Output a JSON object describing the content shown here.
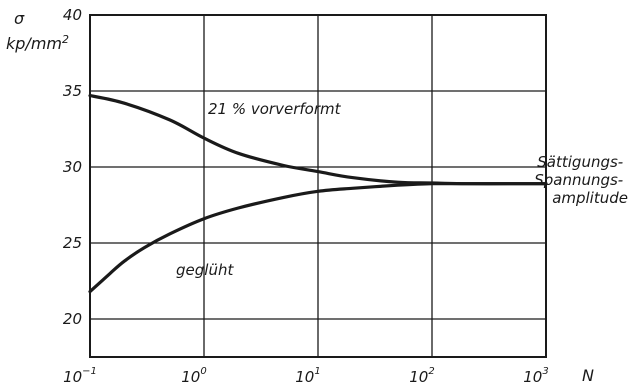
{
  "chart_data": {
    "type": "line",
    "ylabel_symbol": "σ",
    "ylabel_unit": "kp/mm",
    "ylabel_unit_exp": "2",
    "xlabel": "N",
    "x_scale": "log",
    "xlim": [
      0.1,
      1000
    ],
    "ylim": [
      17.5,
      40
    ],
    "grid": true,
    "y_ticks": [
      {
        "value": 20,
        "label": "20"
      },
      {
        "value": 25,
        "label": "25"
      },
      {
        "value": 30,
        "label": "30"
      },
      {
        "value": 35,
        "label": "35"
      },
      {
        "value": 40,
        "label": "40"
      }
    ],
    "x_ticks": [
      {
        "value": 0.1,
        "base": "10",
        "exp": "−1"
      },
      {
        "value": 1,
        "base": "10",
        "exp": "0"
      },
      {
        "value": 10,
        "base": "10",
        "exp": "1"
      },
      {
        "value": 100,
        "base": "10",
        "exp": "2"
      },
      {
        "value": 1000,
        "base": "10",
        "exp": "3"
      }
    ],
    "series": [
      {
        "name": "21 % vorverformt",
        "x": [
          0.1,
          0.2,
          0.5,
          1,
          2,
          5,
          10,
          20,
          50,
          100,
          200,
          500,
          1000
        ],
        "y": [
          34.7,
          34.2,
          33.1,
          31.9,
          30.9,
          30.1,
          29.7,
          29.3,
          29.0,
          28.95,
          28.9,
          28.9,
          28.9
        ]
      },
      {
        "name": "geglüht",
        "x": [
          0.1,
          0.15,
          0.2,
          0.3,
          0.5,
          1,
          2,
          5,
          10,
          20,
          50,
          100,
          200,
          500,
          1000
        ],
        "y": [
          21.8,
          23.0,
          23.8,
          24.7,
          25.6,
          26.6,
          27.3,
          28.0,
          28.4,
          28.6,
          28.8,
          28.9,
          28.9,
          28.9,
          28.9
        ]
      }
    ],
    "annotations": [
      {
        "text": "21 % vorverformt",
        "series": 0
      },
      {
        "text": "geglüht",
        "series": 1
      }
    ],
    "side_note": [
      "Sättigungs-",
      "Spannungs-",
      "amplitude"
    ]
  }
}
